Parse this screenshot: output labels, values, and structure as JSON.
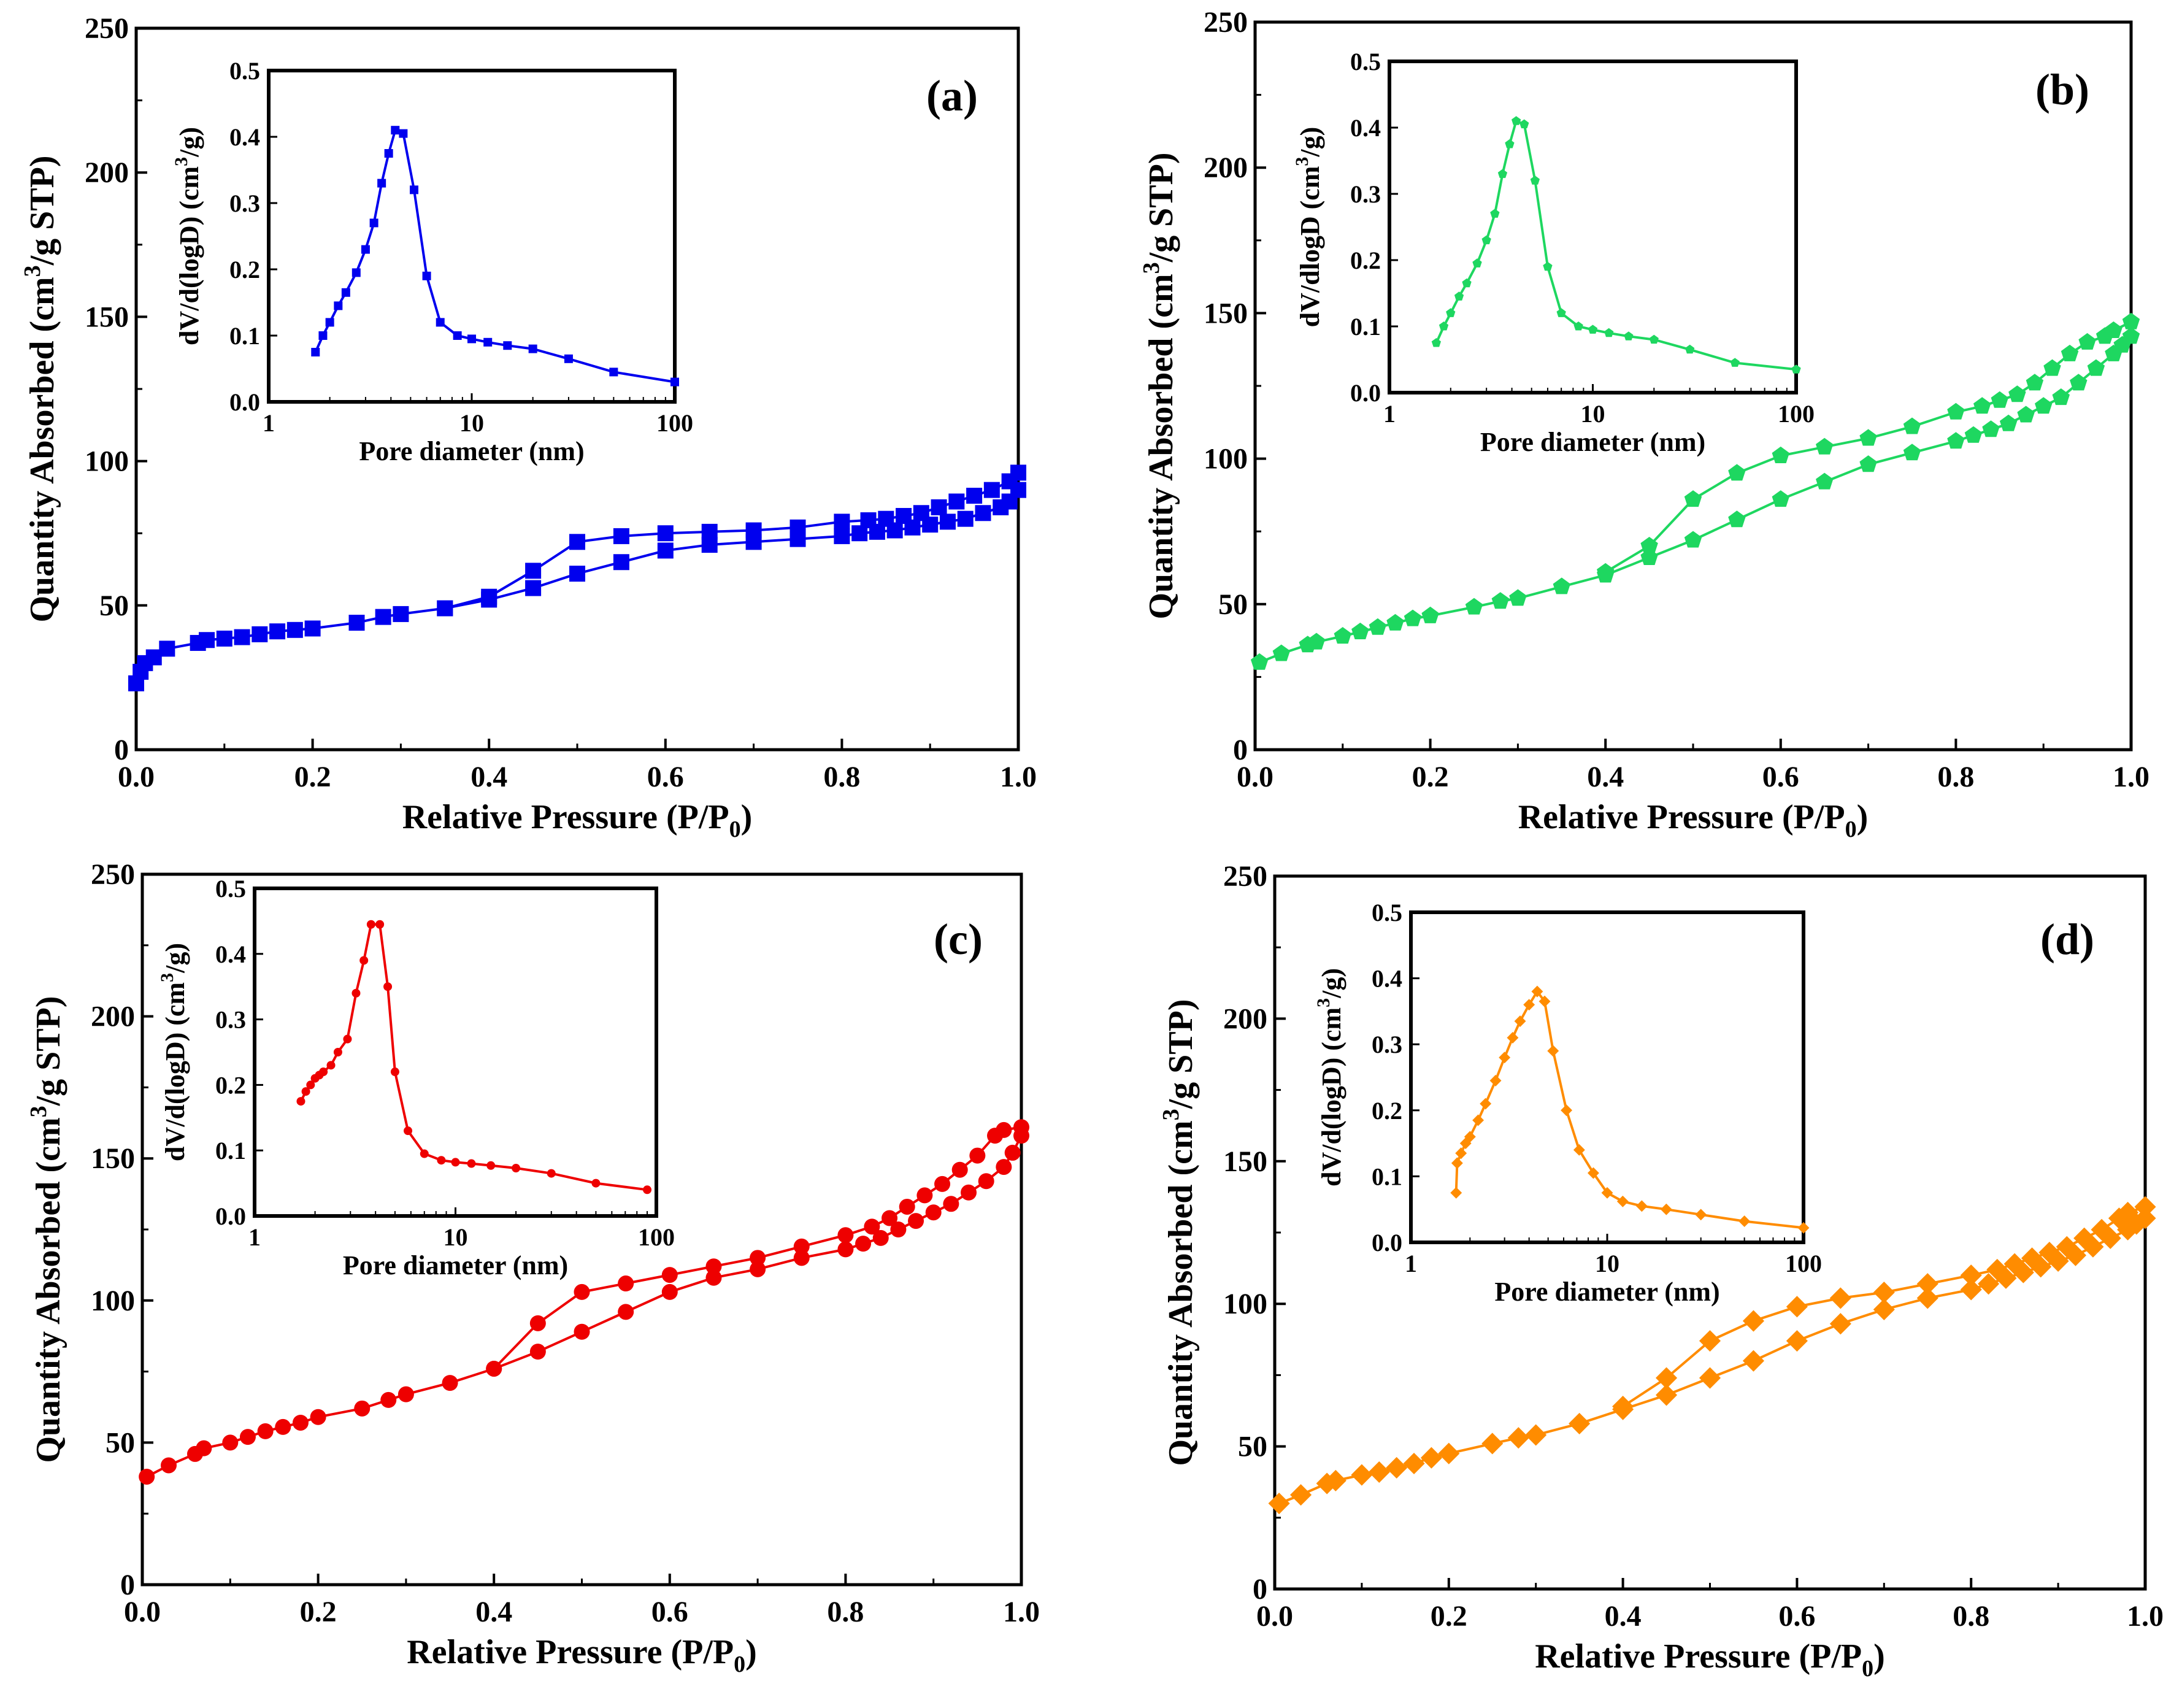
{
  "chart_data": [
    {
      "type": "line",
      "panel_label": "(a)",
      "color": "#0000ee",
      "marker": "square",
      "xlabel": "Relative Pressure (P/P",
      "xlabel_sub": "0",
      "xlabel_end": ")",
      "ylabel": "Quantity Absorbed (cm",
      "ylabel_sup": "3",
      "ylabel_end": "/g STP)",
      "xlim": [
        0,
        1.0
      ],
      "ylim": [
        0,
        250
      ],
      "xticks": [
        "0.0",
        "0.2",
        "0.4",
        "0.6",
        "0.8",
        "1.0"
      ],
      "yticks": [
        "0",
        "50",
        "100",
        "150",
        "200",
        "250"
      ],
      "series": [
        {
          "role": "adsorption",
          "x": [
            0.0,
            0.005,
            0.01,
            0.02,
            0.035,
            0.07,
            0.08,
            0.1,
            0.12,
            0.14,
            0.16,
            0.18,
            0.2,
            0.25,
            0.28,
            0.3,
            0.35,
            0.4,
            0.45,
            0.5,
            0.55,
            0.6,
            0.65,
            0.7,
            0.75,
            0.8,
            0.82,
            0.84,
            0.86,
            0.88,
            0.9,
            0.92,
            0.94,
            0.96,
            0.98,
            0.99,
            1.0
          ],
          "y": [
            23,
            27,
            30,
            32,
            35,
            37,
            38,
            38.5,
            39,
            40,
            41,
            41.5,
            42,
            44,
            46,
            47,
            49,
            52,
            56,
            61,
            65,
            69,
            71,
            72,
            73,
            74,
            75,
            75.5,
            76,
            77,
            78,
            79,
            80,
            82,
            84,
            86,
            90
          ]
        },
        {
          "role": "desorption",
          "x": [
            1.0,
            0.99,
            0.97,
            0.95,
            0.93,
            0.91,
            0.89,
            0.87,
            0.85,
            0.83,
            0.8,
            0.75,
            0.7,
            0.65,
            0.6,
            0.55,
            0.5,
            0.45,
            0.4,
            0.35
          ],
          "y": [
            96,
            93,
            90,
            88,
            86,
            84,
            82,
            81,
            80,
            79.5,
            79,
            77,
            76,
            75.5,
            75,
            74,
            72,
            62,
            53,
            49
          ]
        }
      ],
      "inset": {
        "xlabel": "Pore diameter (nm)",
        "ylabel": "dV/d(logD) (cm",
        "ylabel_sup": "3",
        "ylabel_end": "/g)",
        "xscale": "log",
        "xlim": [
          1,
          100
        ],
        "ylim": [
          0,
          0.5
        ],
        "xticks": [
          "1",
          "10",
          "100"
        ],
        "yticks": [
          "0.0",
          "0.1",
          "0.2",
          "0.3",
          "0.4",
          "0.5"
        ],
        "x": [
          1.7,
          1.85,
          2.0,
          2.2,
          2.4,
          2.7,
          3.0,
          3.3,
          3.6,
          3.9,
          4.2,
          4.6,
          5.2,
          6.0,
          7.0,
          8.5,
          10,
          12,
          15,
          20,
          30,
          50,
          100
        ],
        "y": [
          0.075,
          0.1,
          0.12,
          0.145,
          0.165,
          0.195,
          0.23,
          0.27,
          0.33,
          0.375,
          0.41,
          0.405,
          0.32,
          0.19,
          0.12,
          0.1,
          0.095,
          0.09,
          0.085,
          0.08,
          0.065,
          0.045,
          0.03
        ]
      }
    },
    {
      "type": "line",
      "panel_label": "(b)",
      "color": "#1ed760",
      "marker": "pentagon",
      "xlabel": "Relative Pressure (P/P",
      "xlabel_sub": "0",
      "xlabel_end": ")",
      "ylabel": "Quantity Absorbed (cm",
      "ylabel_sup": "3",
      "ylabel_end": "/g STP)",
      "xlim": [
        0,
        1.0
      ],
      "ylim": [
        0,
        250
      ],
      "xticks": [
        "0.0",
        "0.2",
        "0.4",
        "0.6",
        "0.8",
        "1.0"
      ],
      "yticks": [
        "0",
        "50",
        "100",
        "150",
        "200",
        "250"
      ],
      "series": [
        {
          "role": "adsorption",
          "x": [
            0.005,
            0.03,
            0.06,
            0.07,
            0.1,
            0.12,
            0.14,
            0.16,
            0.18,
            0.2,
            0.25,
            0.28,
            0.3,
            0.35,
            0.4,
            0.45,
            0.5,
            0.55,
            0.6,
            0.65,
            0.7,
            0.75,
            0.8,
            0.82,
            0.84,
            0.86,
            0.88,
            0.9,
            0.92,
            0.94,
            0.96,
            0.98,
            0.99,
            1.0
          ],
          "y": [
            30,
            33,
            36,
            37,
            39,
            40.5,
            42,
            43.5,
            45,
            46,
            49,
            51,
            52,
            56,
            60,
            66,
            72,
            79,
            86,
            92,
            98,
            102,
            106,
            108,
            110,
            112,
            115,
            118,
            121,
            126,
            131,
            136,
            139,
            142
          ]
        },
        {
          "role": "desorption",
          "x": [
            1.0,
            0.98,
            0.97,
            0.95,
            0.93,
            0.91,
            0.89,
            0.87,
            0.85,
            0.83,
            0.8,
            0.75,
            0.7,
            0.65,
            0.6,
            0.55,
            0.5,
            0.45,
            0.4
          ],
          "y": [
            147,
            144,
            142,
            140,
            136,
            131,
            126,
            122,
            120,
            118,
            116,
            111,
            107,
            104,
            101,
            95,
            86,
            70,
            61
          ]
        }
      ],
      "inset": {
        "xlabel": "Pore diameter (nm)",
        "ylabel": "dV/dlogD (cm",
        "ylabel_sup": "3",
        "ylabel_end": "/g)",
        "xscale": "log",
        "xlim": [
          1,
          100
        ],
        "ylim": [
          0,
          0.5
        ],
        "xticks": [
          "1",
          "10",
          "100"
        ],
        "yticks": [
          "0.0",
          "0.1",
          "0.2",
          "0.3",
          "0.4",
          "0.5"
        ],
        "x": [
          1.7,
          1.85,
          2.0,
          2.2,
          2.4,
          2.7,
          3.0,
          3.3,
          3.6,
          3.9,
          4.2,
          4.6,
          5.2,
          6.0,
          7.0,
          8.5,
          10,
          12,
          15,
          20,
          30,
          50,
          100
        ],
        "y": [
          0.075,
          0.1,
          0.12,
          0.145,
          0.165,
          0.195,
          0.23,
          0.27,
          0.33,
          0.375,
          0.41,
          0.405,
          0.32,
          0.19,
          0.12,
          0.1,
          0.095,
          0.09,
          0.085,
          0.08,
          0.065,
          0.045,
          0.035
        ]
      }
    },
    {
      "type": "line",
      "panel_label": "(c)",
      "color": "#ee0000",
      "marker": "circle",
      "xlabel": "Relative Pressure (P/P",
      "xlabel_sub": "0",
      "xlabel_end": ")",
      "ylabel": "Quantity Absorbed (cm",
      "ylabel_sup": "3",
      "ylabel_end": "/g STP)",
      "xlim": [
        0,
        1.0
      ],
      "ylim": [
        0,
        250
      ],
      "xticks": [
        "0.0",
        "0.2",
        "0.4",
        "0.6",
        "0.8",
        "1.0"
      ],
      "yticks": [
        "0",
        "50",
        "100",
        "150",
        "200",
        "250"
      ],
      "series": [
        {
          "role": "adsorption",
          "x": [
            0.005,
            0.03,
            0.06,
            0.07,
            0.1,
            0.12,
            0.14,
            0.16,
            0.18,
            0.2,
            0.25,
            0.28,
            0.3,
            0.35,
            0.4,
            0.45,
            0.5,
            0.55,
            0.6,
            0.65,
            0.7,
            0.75,
            0.8,
            0.82,
            0.84,
            0.86,
            0.88,
            0.9,
            0.92,
            0.94,
            0.96,
            0.98,
            0.99,
            1.0
          ],
          "y": [
            38,
            42,
            46,
            48,
            50,
            52,
            54,
            55.5,
            57,
            59,
            62,
            65,
            67,
            71,
            76,
            82,
            89,
            96,
            103,
            108,
            111,
            115,
            118,
            120,
            122,
            125,
            128,
            131,
            134,
            138,
            142,
            147,
            152,
            158
          ]
        },
        {
          "role": "desorption",
          "x": [
            1.0,
            0.98,
            0.97,
            0.95,
            0.93,
            0.91,
            0.89,
            0.87,
            0.85,
            0.83,
            0.8,
            0.75,
            0.7,
            0.65,
            0.6,
            0.55,
            0.5,
            0.45,
            0.4
          ],
          "y": [
            161,
            160,
            158,
            151,
            146,
            141,
            137,
            133,
            129,
            126,
            123,
            119,
            115,
            112,
            109,
            106,
            103,
            92,
            76
          ]
        }
      ],
      "inset": {
        "xlabel": "Pore diameter (nm)",
        "ylabel": "dV/d(logD) (cm",
        "ylabel_sup": "3",
        "ylabel_end": "/g)",
        "xscale": "log",
        "xlim": [
          1,
          100
        ],
        "ylim": [
          0,
          0.5
        ],
        "xticks": [
          "1",
          "10",
          "100"
        ],
        "yticks": [
          "0.0",
          "0.1",
          "0.2",
          "0.3",
          "0.4",
          "0.5"
        ],
        "x": [
          1.7,
          1.8,
          1.9,
          2.0,
          2.1,
          2.2,
          2.4,
          2.6,
          2.9,
          3.2,
          3.5,
          3.8,
          4.2,
          4.6,
          5.0,
          5.8,
          7.0,
          8.5,
          10,
          12,
          15,
          20,
          30,
          50,
          90
        ],
        "y": [
          0.175,
          0.19,
          0.2,
          0.21,
          0.215,
          0.22,
          0.23,
          0.25,
          0.27,
          0.34,
          0.39,
          0.445,
          0.445,
          0.35,
          0.22,
          0.13,
          0.095,
          0.085,
          0.082,
          0.08,
          0.077,
          0.073,
          0.065,
          0.05,
          0.04
        ]
      }
    },
    {
      "type": "line",
      "panel_label": "(d)",
      "color": "#ff8c00",
      "marker": "diamond",
      "xlabel": "Relative Pressure (P/P",
      "xlabel_sub": "0",
      "xlabel_end": ")",
      "ylabel": "Quantity Absorbed (cm",
      "ylabel_sup": "3",
      "ylabel_end": "/g STP)",
      "xlim": [
        0,
        1.0
      ],
      "ylim": [
        0,
        250
      ],
      "xticks": [
        "0.0",
        "0.2",
        "0.4",
        "0.6",
        "0.8",
        "1.0"
      ],
      "yticks": [
        "0",
        "50",
        "100",
        "150",
        "200",
        "250"
      ],
      "series": [
        {
          "role": "adsorption",
          "x": [
            0.005,
            0.03,
            0.06,
            0.07,
            0.1,
            0.12,
            0.14,
            0.16,
            0.18,
            0.2,
            0.25,
            0.28,
            0.3,
            0.35,
            0.4,
            0.45,
            0.5,
            0.55,
            0.6,
            0.65,
            0.7,
            0.75,
            0.8,
            0.82,
            0.84,
            0.86,
            0.88,
            0.9,
            0.92,
            0.94,
            0.96,
            0.98,
            0.99,
            1.0
          ],
          "y": [
            30,
            33,
            37,
            38,
            40,
            41,
            42.5,
            44,
            46,
            47.5,
            51,
            53,
            54,
            58,
            63,
            68,
            74,
            80,
            87,
            93,
            98,
            102,
            105,
            107,
            109,
            111,
            113,
            115,
            117,
            120,
            123,
            126,
            128,
            130
          ]
        },
        {
          "role": "desorption",
          "x": [
            1.0,
            0.98,
            0.97,
            0.95,
            0.93,
            0.91,
            0.89,
            0.87,
            0.85,
            0.83,
            0.8,
            0.75,
            0.7,
            0.65,
            0.6,
            0.55,
            0.5,
            0.45,
            0.4
          ],
          "y": [
            134,
            132,
            130,
            126,
            123,
            120,
            118,
            116,
            114,
            112,
            110,
            107,
            104,
            102,
            99,
            94,
            87,
            74,
            64
          ]
        }
      ],
      "inset": {
        "xlabel": "Pore diameter (nm)",
        "ylabel": "dV/d(logD) (cm",
        "ylabel_sup": "3",
        "ylabel_end": "/g)",
        "xscale": "log",
        "xlim": [
          1,
          100
        ],
        "ylim": [
          0,
          0.5
        ],
        "xticks": [
          "1",
          "10",
          "100"
        ],
        "yticks": [
          "0.0",
          "0.1",
          "0.2",
          "0.3",
          "0.4",
          "0.5"
        ],
        "x": [
          1.7,
          1.72,
          1.8,
          1.9,
          2.0,
          2.2,
          2.4,
          2.7,
          3.0,
          3.3,
          3.6,
          4.0,
          4.4,
          4.8,
          5.3,
          6.2,
          7.2,
          8.5,
          10,
          12,
          15,
          20,
          30,
          50,
          100
        ],
        "y": [
          0.075,
          0.12,
          0.135,
          0.15,
          0.16,
          0.185,
          0.21,
          0.245,
          0.28,
          0.31,
          0.335,
          0.36,
          0.38,
          0.365,
          0.29,
          0.2,
          0.14,
          0.105,
          0.075,
          0.062,
          0.055,
          0.05,
          0.042,
          0.032,
          0.022
        ]
      }
    }
  ]
}
